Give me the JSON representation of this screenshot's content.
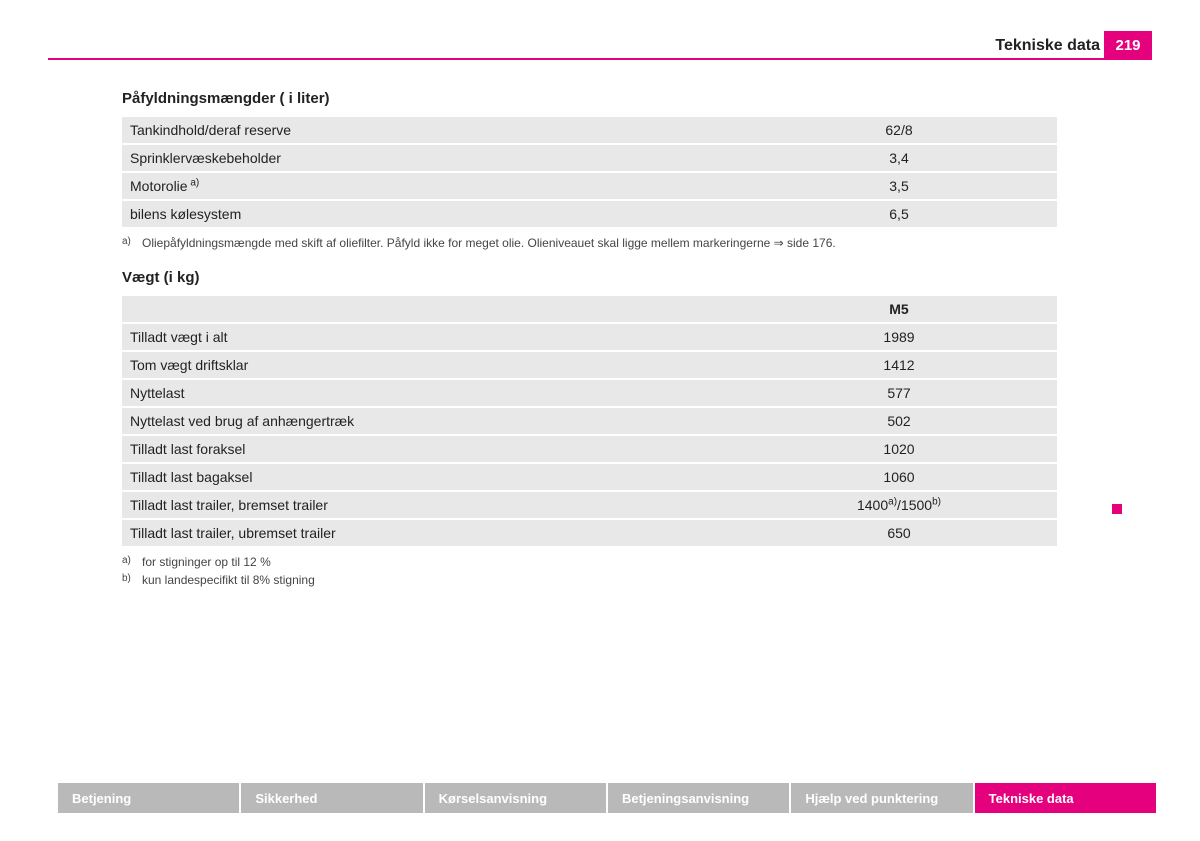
{
  "colors": {
    "accent": "#e5007d",
    "row_bg": "#e8e8e8",
    "tab_inactive_bg": "#b9b9b9",
    "tab_text": "#ffffff",
    "text": "#222222",
    "page_bg": "#ffffff"
  },
  "header": {
    "title": "Tekniske data",
    "page_number": "219"
  },
  "section1": {
    "title": "Påfyldningsmængder ( i liter)",
    "rows": [
      {
        "label": "Tankindhold/deraf reserve",
        "value": "62/8",
        "sup": ""
      },
      {
        "label": "Sprinklervæskebeholder",
        "value": "3,4",
        "sup": ""
      },
      {
        "label": "Motorolie",
        "value": "3,5",
        "sup": "a)"
      },
      {
        "label": "bilens kølesystem",
        "value": "6,5",
        "sup": ""
      }
    ],
    "footnotes": [
      {
        "marker": "a)",
        "text": "Oliepåfyldningsmængde med skift af oliefilter. Påfyld ikke for meget olie. Olieniveauet skal ligge mellem markeringerne ⇒ side 176."
      }
    ]
  },
  "section2": {
    "title": "Vægt (i kg)",
    "column_header": "M5",
    "rows": [
      {
        "label": "Tilladt vægt i alt",
        "value": "1989"
      },
      {
        "label": "Tom vægt driftsklar",
        "value": "1412"
      },
      {
        "label": "Nyttelast",
        "value": "577"
      },
      {
        "label": "Nyttelast ved brug af anhængertræk",
        "value": "502"
      },
      {
        "label": "Tilladt last foraksel",
        "value": "1020"
      },
      {
        "label": "Tilladt last bagaksel",
        "value": "1060"
      },
      {
        "label": "Tilladt last trailer, bremset trailer",
        "value_parts": [
          "1400",
          "a)",
          "/1500",
          "b)"
        ]
      },
      {
        "label": "Tilladt last trailer, ubremset trailer",
        "value": "650"
      }
    ],
    "footnotes": [
      {
        "marker": "a)",
        "text": "for stigninger op til 12 %"
      },
      {
        "marker": "b)",
        "text": "kun landespecifikt til 8% stigning"
      }
    ]
  },
  "nav": {
    "tabs": [
      {
        "label": "Betjening",
        "active": false
      },
      {
        "label": "Sikkerhed",
        "active": false
      },
      {
        "label": "Kørselsanvisning",
        "active": false
      },
      {
        "label": "Betjeningsanvisning",
        "active": false
      },
      {
        "label": "Hjælp ved punktering",
        "active": false
      },
      {
        "label": "Tekniske data",
        "active": true
      }
    ]
  }
}
